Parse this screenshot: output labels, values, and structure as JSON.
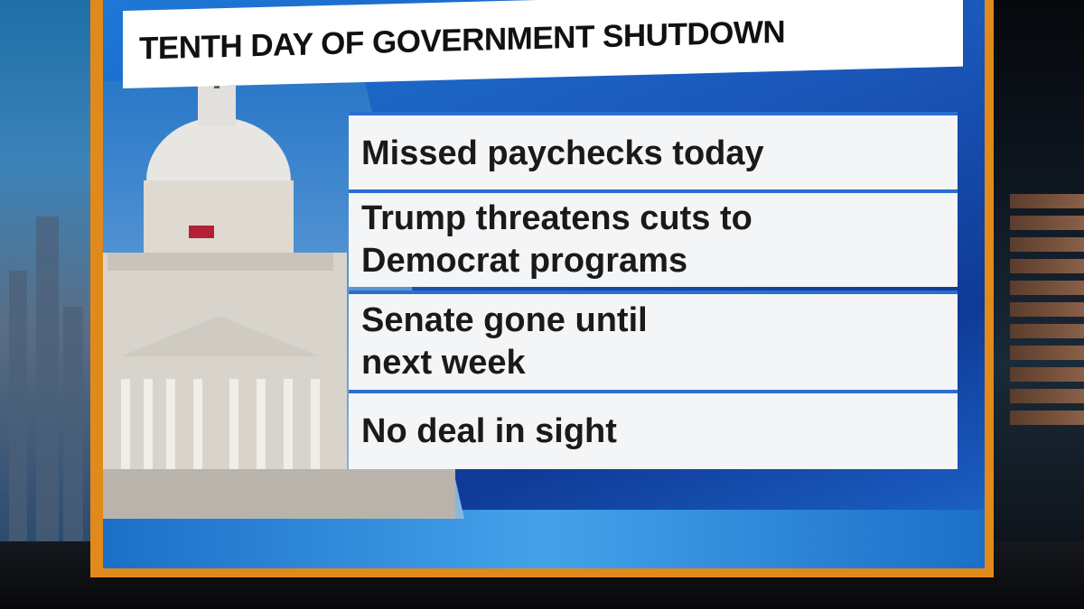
{
  "graphic": {
    "title": "TENTH DAY OF GOVERNMENT SHUTDOWN",
    "bullets": [
      {
        "text": "Missed paychecks today"
      },
      {
        "text": "Trump threatens cuts to\nDemocrat programs"
      },
      {
        "text": "Senate gone until\nnext week"
      },
      {
        "text": "No deal in sight"
      }
    ]
  },
  "colors": {
    "frame_accent": "#e08a1c",
    "background_blue": "#1a56b8",
    "banner": "#ffffff"
  }
}
